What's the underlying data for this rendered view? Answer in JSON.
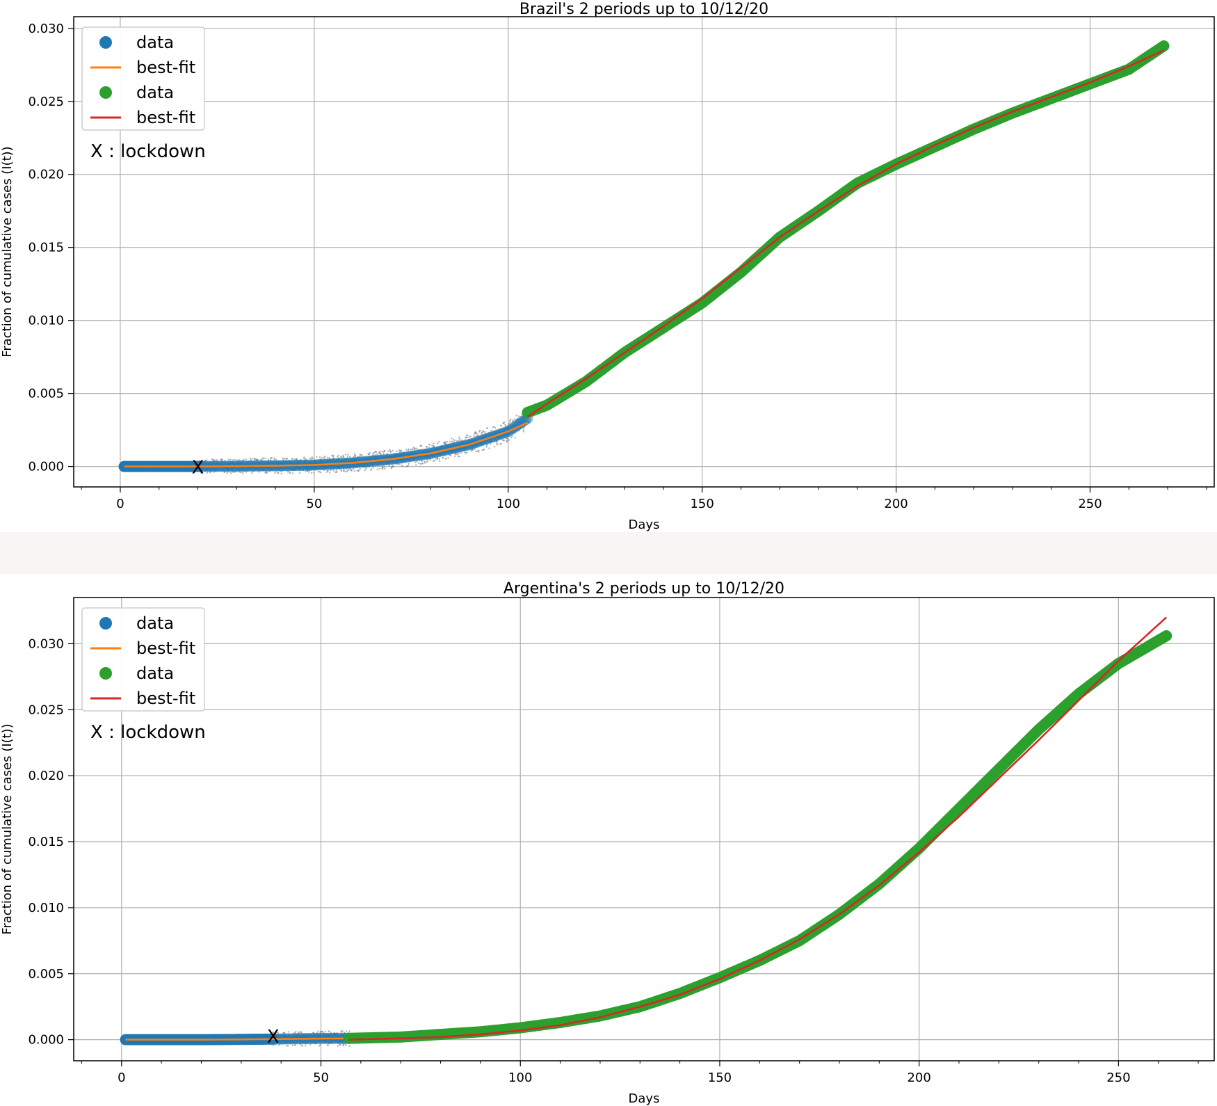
{
  "colors": {
    "period1_data": "#1f77b4",
    "period1_fit": "#ff7f0e",
    "period2_data": "#2ca02c",
    "period2_fit": "#d62728",
    "error_band": "#808080",
    "grid": "#b0b0b0"
  },
  "chart_data": [
    {
      "type": "scatter",
      "title": "Brazil's 2 periods up to 10/12/20",
      "xlabel": "Days",
      "ylabel": "Fraction of cumulative cases (I(t))",
      "xlim": [
        -12,
        282
      ],
      "ylim": [
        -0.0014,
        0.0308
      ],
      "xticks": [
        0,
        50,
        100,
        150,
        200,
        250
      ],
      "yticks": [
        0.0,
        0.005,
        0.01,
        0.015,
        0.02,
        0.025,
        0.03
      ],
      "ytick_labels": [
        "0.000",
        "0.005",
        "0.010",
        "0.015",
        "0.020",
        "0.025",
        "0.030"
      ],
      "grid": true,
      "legend_position": "top-left",
      "legend": [
        "data",
        "best-fit",
        "data",
        "best-fit"
      ],
      "annotation": {
        "text": "X : lockdown",
        "marker": "X",
        "x": 20,
        "y": 0.0
      },
      "series": [
        {
          "name": "data",
          "kind": "points",
          "color_key": "period1_data",
          "x": [
            1,
            10,
            20,
            30,
            40,
            50,
            60,
            70,
            80,
            90,
            100,
            105
          ],
          "y": [
            0.0,
            0.0,
            0.0,
            2e-05,
            5e-05,
            0.0001,
            0.00025,
            0.0005,
            0.0009,
            0.0015,
            0.0024,
            0.0033
          ]
        },
        {
          "name": "best-fit",
          "kind": "line",
          "color_key": "period1_fit",
          "x": [
            1,
            10,
            20,
            30,
            40,
            50,
            60,
            70,
            80,
            90,
            100,
            105
          ],
          "y": [
            0.0,
            0.0,
            0.0,
            2e-05,
            5e-05,
            0.0001,
            0.00025,
            0.0005,
            0.0009,
            0.0015,
            0.0024,
            0.003
          ]
        },
        {
          "name": "data",
          "kind": "points",
          "color_key": "period2_data",
          "x": [
            105,
            110,
            120,
            130,
            140,
            150,
            160,
            170,
            180,
            190,
            200,
            210,
            220,
            230,
            240,
            250,
            260,
            269
          ],
          "y": [
            0.0037,
            0.0042,
            0.0058,
            0.0078,
            0.0095,
            0.0112,
            0.0133,
            0.0157,
            0.0175,
            0.0194,
            0.0207,
            0.0219,
            0.0231,
            0.0242,
            0.0252,
            0.0262,
            0.0272,
            0.0288
          ]
        },
        {
          "name": "best-fit",
          "kind": "line",
          "color_key": "period2_fit",
          "x": [
            105,
            110,
            120,
            130,
            140,
            150,
            160,
            170,
            180,
            190,
            200,
            210,
            220,
            230,
            240,
            250,
            260,
            269
          ],
          "y": [
            0.0034,
            0.0043,
            0.006,
            0.0078,
            0.0096,
            0.0115,
            0.0136,
            0.0157,
            0.0175,
            0.0192,
            0.0207,
            0.022,
            0.0232,
            0.0243,
            0.0253,
            0.0263,
            0.0274,
            0.0285
          ]
        }
      ]
    },
    {
      "type": "scatter",
      "title": "Argentina's 2 periods up to 10/12/20",
      "xlabel": "Days",
      "ylabel": "Fraction of cumulative cases (I(t))",
      "xlim": [
        -12,
        274
      ],
      "ylim": [
        -0.0016,
        0.0335
      ],
      "xticks": [
        0,
        50,
        100,
        150,
        200,
        250
      ],
      "yticks": [
        0.0,
        0.005,
        0.01,
        0.015,
        0.02,
        0.025,
        0.03
      ],
      "ytick_labels": [
        "0.000",
        "0.005",
        "0.010",
        "0.015",
        "0.020",
        "0.025",
        "0.030"
      ],
      "grid": true,
      "legend_position": "top-left",
      "legend": [
        "data",
        "best-fit",
        "data",
        "best-fit"
      ],
      "annotation": {
        "text": "X : lockdown",
        "marker": "X",
        "x": 38,
        "y": 0.0003
      },
      "series": [
        {
          "name": "data",
          "kind": "points",
          "color_key": "period1_data",
          "x": [
            1,
            10,
            20,
            30,
            40,
            50,
            57
          ],
          "y": [
            0.0,
            0.0,
            0.0,
            2e-05,
            5e-05,
            0.0001,
            0.0001
          ]
        },
        {
          "name": "best-fit",
          "kind": "line",
          "color_key": "period1_fit",
          "x": [
            1,
            10,
            20,
            30,
            40,
            50,
            57
          ],
          "y": [
            0.0,
            0.0,
            0.0,
            2e-05,
            5e-05,
            8e-05,
            0.0001
          ]
        },
        {
          "name": "data",
          "kind": "points",
          "color_key": "period2_data",
          "x": [
            57,
            70,
            80,
            90,
            100,
            110,
            120,
            130,
            140,
            150,
            160,
            170,
            180,
            190,
            200,
            210,
            220,
            230,
            240,
            250,
            262
          ],
          "y": [
            0.0001,
            0.0002,
            0.0004,
            0.0006,
            0.0009,
            0.0013,
            0.0018,
            0.0025,
            0.0035,
            0.0047,
            0.006,
            0.0075,
            0.0095,
            0.0118,
            0.0145,
            0.0175,
            0.0205,
            0.0235,
            0.0262,
            0.0285,
            0.0306
          ]
        },
        {
          "name": "best-fit",
          "kind": "line",
          "color_key": "period2_fit",
          "x": [
            57,
            70,
            80,
            90,
            100,
            110,
            120,
            130,
            140,
            150,
            160,
            170,
            180,
            190,
            200,
            210,
            220,
            230,
            240,
            250,
            262
          ],
          "y": [
            0.0,
            0.0001,
            0.0002,
            0.0004,
            0.0007,
            0.0011,
            0.0017,
            0.0025,
            0.0034,
            0.0046,
            0.006,
            0.0076,
            0.0095,
            0.0117,
            0.0142,
            0.0169,
            0.0198,
            0.0227,
            0.0257,
            0.0287,
            0.032
          ]
        }
      ]
    }
  ]
}
